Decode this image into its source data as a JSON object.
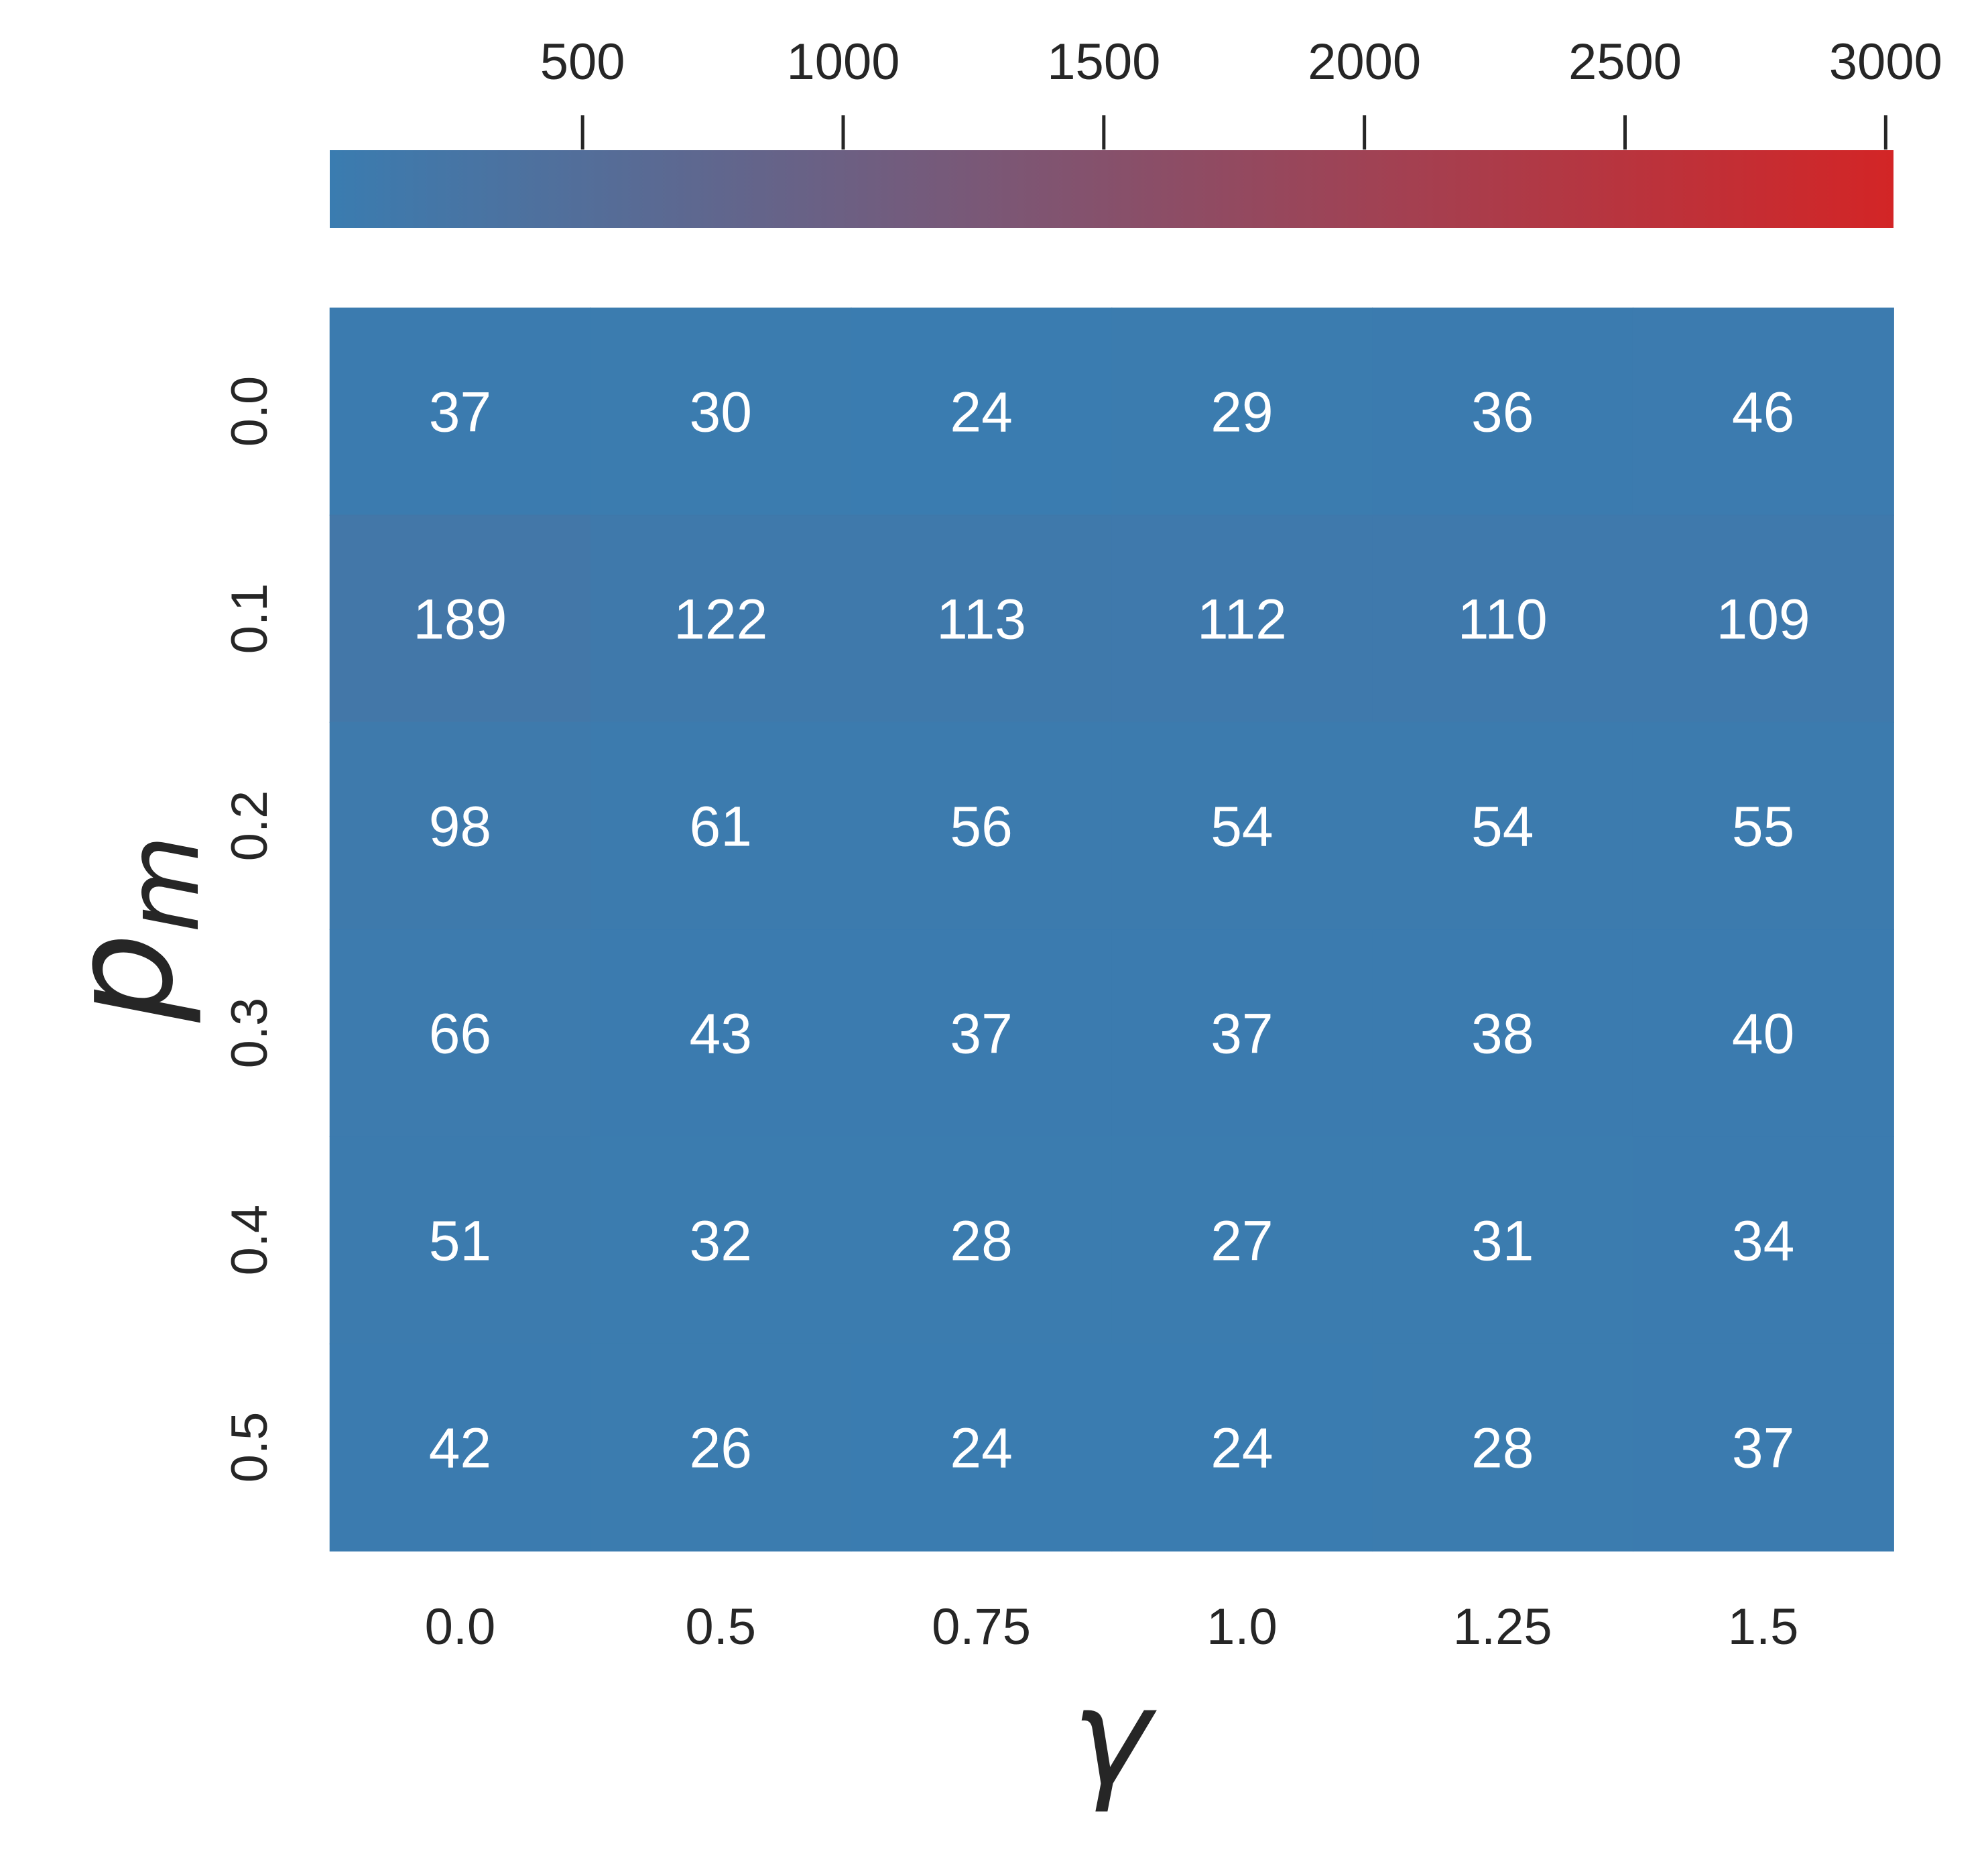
{
  "chart_data": {
    "type": "heatmap",
    "title": "",
    "xlabel": "γ",
    "ylabel": "p",
    "ylabel_subscript": "m",
    "x_categories": [
      "0.0",
      "0.5",
      "0.75",
      "1.0",
      "1.25",
      "1.5"
    ],
    "y_categories": [
      "0.0",
      "0.1",
      "0.2",
      "0.3",
      "0.4",
      "0.5"
    ],
    "values": [
      [
        37,
        30,
        24,
        29,
        36,
        46
      ],
      [
        189,
        122,
        113,
        112,
        110,
        109
      ],
      [
        98,
        61,
        56,
        54,
        54,
        55
      ],
      [
        66,
        43,
        37,
        37,
        38,
        40
      ],
      [
        51,
        32,
        28,
        27,
        31,
        34
      ],
      [
        42,
        26,
        24,
        24,
        28,
        37
      ]
    ],
    "colorbar": {
      "position": "top",
      "min": 15,
      "max": 3015,
      "ticks": [
        500,
        1000,
        1500,
        2000,
        2500,
        3000
      ],
      "color_low": "#3a7cb0",
      "color_high": "#d32526"
    },
    "annotation_color": "#ffffff",
    "grid": false
  }
}
